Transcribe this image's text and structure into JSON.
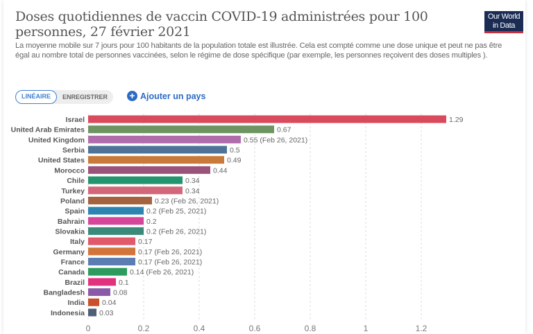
{
  "header": {
    "title": "Doses quotidiennes de vaccin COVID-19 administrées pour 100 personnes, 27 février 2021",
    "logo": "Our World in Data",
    "subtitle_1": "La moyenne mobile sur 7 jours pour 100 habitants de la population totale est illustrée. Cela est compté comme une dose unique et peut ne pas être",
    "subtitle_2": "égal au nombre total de personnes vaccinées, selon le régime de dose spécifique (par exemple, les personnes reçoivent des doses multiples )."
  },
  "controls": {
    "linear": "LINÉAIRE",
    "log": "ENREGISTRER",
    "add_country": "Ajouter un pays"
  },
  "chart_data": {
    "type": "bar",
    "orientation": "horizontal",
    "title": "Doses quotidiennes de vaccin COVID-19 administrées pour 100 personnes, 27 février 2021",
    "xlim": [
      0,
      1.3
    ],
    "xticks": [
      "0",
      "0.2",
      "0.4",
      "0.6",
      "0.8",
      "1",
      "1.2"
    ],
    "tick_values": [
      0,
      0.2,
      0.4,
      0.6,
      0.8,
      1,
      1.2
    ],
    "grid": true,
    "categories": [
      "Israel",
      "United Arab Emirates",
      "United Kingdom",
      "Serbia",
      "United States",
      "Morocco",
      "Chile",
      "Turkey",
      "Poland",
      "Spain",
      "Bahrain",
      "Slovakia",
      "Italy",
      "Germany",
      "France",
      "Canada",
      "Brazil",
      "Bangladesh",
      "India",
      "Indonesia"
    ],
    "values": [
      1.29,
      0.67,
      0.55,
      0.5,
      0.49,
      0.44,
      0.34,
      0.34,
      0.23,
      0.2,
      0.2,
      0.2,
      0.17,
      0.17,
      0.17,
      0.14,
      0.1,
      0.08,
      0.04,
      0.03
    ],
    "labels": [
      "1.29",
      "0.67",
      "0.55 (Feb 26, 2021)",
      "0.5",
      "0.49",
      "0.44",
      "0.34",
      "0.34",
      "0.23 (Feb 26, 2021)",
      "0.2 (Feb 25, 2021)",
      "0.2",
      "0.2 (Feb 26, 2021)",
      "0.17",
      "0.17 (Feb 26, 2021)",
      "0.17 (Feb 26, 2021)",
      "0.14 (Feb 26, 2021)",
      "0.1",
      "0.08",
      "0.04",
      "0.03"
    ],
    "colors": [
      "#d94a5c",
      "#6e9561",
      "#b06dab",
      "#4f7398",
      "#c97a3b",
      "#9c5379",
      "#24946f",
      "#d3677a",
      "#a5623f",
      "#2b84b1",
      "#d5469b",
      "#3b8a79",
      "#e05a6b",
      "#d3743a",
      "#5c7db3",
      "#2b9b5e",
      "#e0327f",
      "#8a5aa8",
      "#c9502b",
      "#4e5f77"
    ]
  }
}
